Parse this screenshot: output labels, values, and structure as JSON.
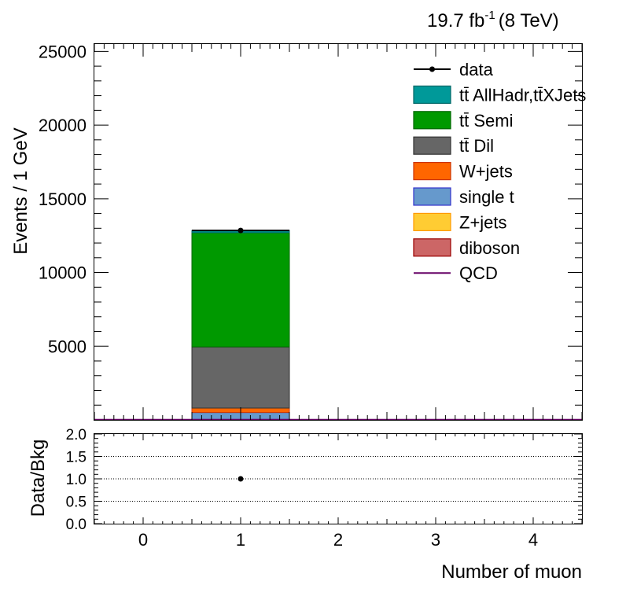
{
  "header": {
    "lumi": "19.7 fb",
    "lumi_exp": "-1",
    "energy": "(8 TeV)"
  },
  "chart_data": [
    {
      "type": "bar",
      "subtype": "stacked-histogram",
      "ylabel": "Events / 1 GeV",
      "xlim": [
        -0.5,
        4.5
      ],
      "ylim": [
        0,
        25500
      ],
      "yticks": [
        5000,
        10000,
        15000,
        20000,
        25000
      ],
      "bins": [
        0,
        1,
        2,
        3,
        4
      ],
      "stack_order_bottom_to_top": [
        "single t",
        "W+jets",
        "tt̄ Dil",
        "tt̄ Semi",
        "tt̄ AllHadr,tt̄XJets"
      ],
      "series": [
        {
          "name": "data",
          "kind": "points",
          "color": "#000000",
          "values": [
            0,
            12850,
            0,
            0,
            0
          ]
        },
        {
          "name": "tt̄ AllHadr,tt̄XJets",
          "kind": "stack",
          "color": "#009999",
          "values": [
            0,
            150,
            0,
            0,
            0
          ]
        },
        {
          "name": "tt̄ Semi",
          "kind": "stack",
          "color": "#009900",
          "values": [
            0,
            7750,
            0,
            0,
            0
          ]
        },
        {
          "name": "tt̄ Dil",
          "kind": "stack",
          "color": "#666666",
          "values": [
            0,
            4150,
            0,
            0,
            0
          ]
        },
        {
          "name": "W+jets",
          "kind": "stack",
          "color": "#ff6600",
          "values": [
            0,
            300,
            0,
            0,
            0
          ]
        },
        {
          "name": "single t",
          "kind": "stack",
          "color": "#6699cc",
          "values": [
            0,
            500,
            0,
            0,
            0
          ]
        },
        {
          "name": "Z+jets",
          "kind": "stack",
          "color": "#ffcc33",
          "values": [
            0,
            0,
            0,
            0,
            0
          ]
        },
        {
          "name": "diboson",
          "kind": "stack",
          "color": "#cc6666",
          "values": [
            0,
            0,
            0,
            0,
            0
          ]
        },
        {
          "name": "QCD",
          "kind": "line",
          "color": "#660066",
          "values": [
            0,
            0,
            0,
            0,
            0
          ]
        }
      ],
      "legend": {
        "placement": "top-right",
        "entries": [
          {
            "label": "data",
            "style": "marker",
            "color": "#000000"
          },
          {
            "label": "tt̄ AllHadr,tt̄XJets",
            "style": "box",
            "color": "#009999",
            "edge": "#006666"
          },
          {
            "label": "tt̄ Semi",
            "style": "box",
            "color": "#009900",
            "edge": "#006600"
          },
          {
            "label": "tt̄ Dil",
            "style": "box",
            "color": "#666666",
            "edge": "#333333"
          },
          {
            "label": "W+jets",
            "style": "box",
            "color": "#ff6600",
            "edge": "#cc3300"
          },
          {
            "label": "single t",
            "style": "box",
            "color": "#6699cc",
            "edge": "#3333cc"
          },
          {
            "label": "Z+jets",
            "style": "box",
            "color": "#ffcc33",
            "edge": "#ff9900"
          },
          {
            "label": "diboson",
            "style": "box",
            "color": "#cc6666",
            "edge": "#990000"
          },
          {
            "label": "QCD",
            "style": "line",
            "color": "#660066"
          }
        ]
      }
    },
    {
      "type": "scatter",
      "subtype": "ratio",
      "ylabel": "Data/Bkg",
      "xlabel": "Number of muon",
      "xlim": [
        -0.5,
        4.5
      ],
      "ylim": [
        0.0,
        2.0
      ],
      "yticks": [
        "0.0",
        "0.5",
        "1.0",
        "1.5",
        "2.0"
      ],
      "xticks": [
        "0",
        "1",
        "2",
        "3",
        "4"
      ],
      "gridlines_y": [
        0.5,
        1.0,
        1.5
      ],
      "points": [
        {
          "x": 1,
          "y": 1.0
        }
      ]
    }
  ]
}
